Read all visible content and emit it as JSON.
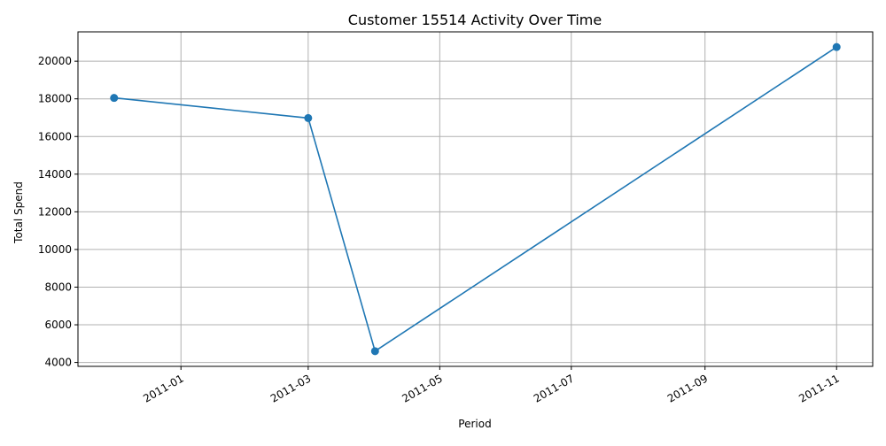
{
  "chart_data": {
    "type": "line",
    "title": "Customer 15514 Activity Over Time",
    "xlabel": "Period",
    "ylabel": "Total Spend",
    "x_ticks": [
      "2011-01",
      "2011-03",
      "2011-05",
      "2011-07",
      "2011-09",
      "2011-11"
    ],
    "y_ticks": [
      4000,
      6000,
      8000,
      10000,
      12000,
      14000,
      16000,
      18000,
      20000
    ],
    "grid": true,
    "legend": "none",
    "series": [
      {
        "color": "#1f77b4",
        "marker": "circle",
        "x": [
          "2010-12-01",
          "2011-03-01",
          "2011-04-01",
          "2011-11-01"
        ],
        "values": [
          18050,
          16980,
          4600,
          20750
        ]
      }
    ]
  }
}
